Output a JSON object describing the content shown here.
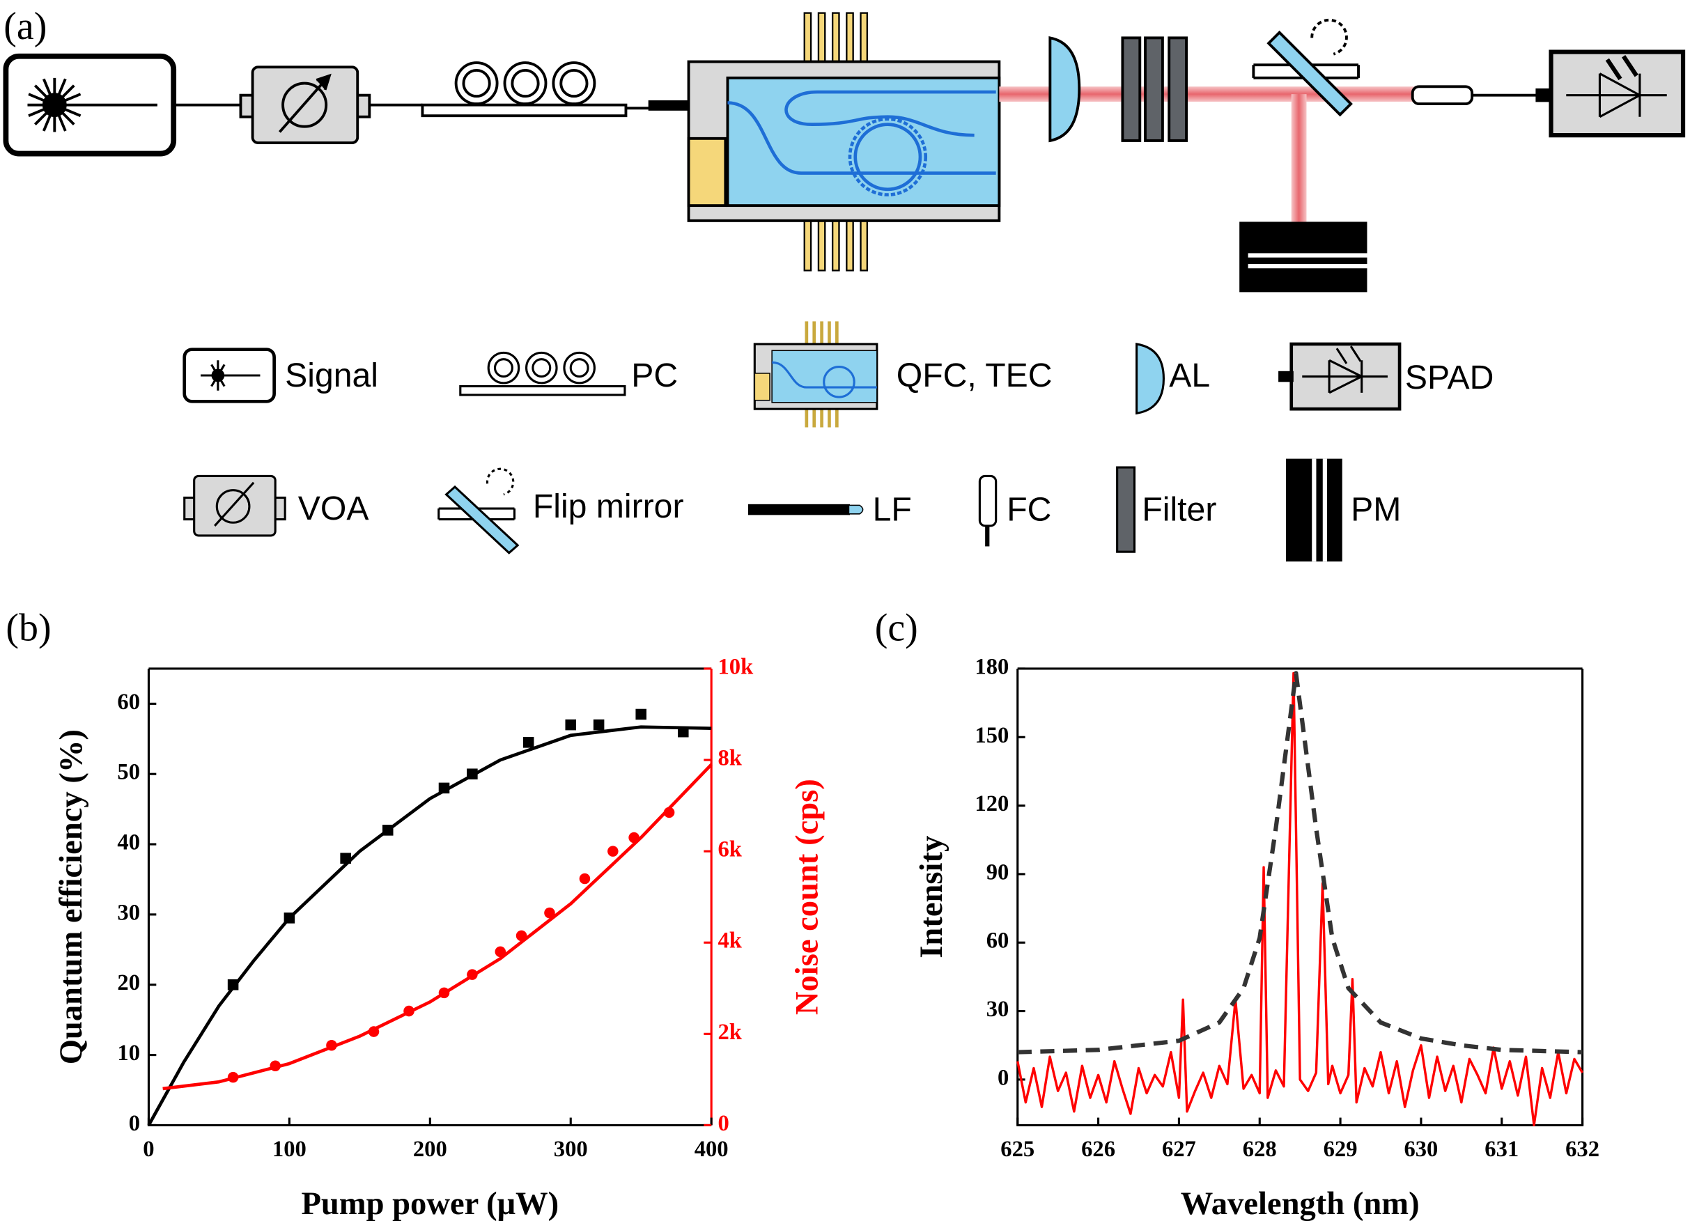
{
  "diagram": {
    "label": "(a)",
    "legend": [
      "Signal",
      "PC",
      "QFC, TEC",
      "AL",
      "SPAD",
      "VOA",
      "Flip mirror",
      "LF",
      "FC",
      "Filter",
      "PM"
    ]
  },
  "chart_data": [
    {
      "type": "scatter",
      "panel_label": "(b)",
      "xlabel": "Pump power (μW)",
      "ylabel": "Quantum efficiency (%)",
      "y2label": "Noise count (cps)",
      "xlim": [
        0,
        400
      ],
      "xticks": [
        0,
        100,
        200,
        300,
        400
      ],
      "ylim": [
        0,
        65
      ],
      "yticks": [
        0,
        10,
        20,
        30,
        40,
        50,
        60
      ],
      "y2lim": [
        0,
        10000
      ],
      "y2color": "#ff0000",
      "y2ticks": [
        0,
        {
          "value": 2000,
          "label": "2k"
        },
        {
          "value": 4000,
          "label": "4k"
        },
        {
          "value": 6000,
          "label": "6k"
        },
        {
          "value": 8000,
          "label": "8k"
        },
        {
          "value": 10000,
          "label": "10k"
        }
      ],
      "series": [
        {
          "color": "#000000",
          "mode": "markers",
          "marker": "square",
          "x": [
            60,
            100,
            140,
            170,
            210,
            230,
            270,
            300,
            320,
            350,
            380
          ],
          "values": [
            20,
            29.5,
            38,
            42,
            48,
            50,
            54.5,
            57,
            57,
            58.5,
            56
          ]
        },
        {
          "color": "#000000",
          "mode": "line",
          "x": [
            0,
            25,
            50,
            75,
            100,
            150,
            200,
            250,
            300,
            350,
            400
          ],
          "values": [
            0,
            9,
            17,
            23.5,
            29.5,
            39,
            46.5,
            52,
            55.5,
            56.7,
            56.5
          ]
        },
        {
          "color": "#ff0000",
          "mode": "markers",
          "marker": "circle",
          "axis": "y2",
          "x": [
            60,
            90,
            130,
            160,
            185,
            210,
            230,
            250,
            265,
            285,
            310,
            330,
            345,
            370
          ],
          "values": [
            1050,
            1300,
            1750,
            2050,
            2500,
            2900,
            3300,
            3800,
            4150,
            4650,
            5400,
            6000,
            6300,
            6850
          ]
        },
        {
          "color": "#ff0000",
          "mode": "line",
          "axis": "y2",
          "x": [
            10,
            50,
            100,
            150,
            200,
            250,
            300,
            350,
            400
          ],
          "values": [
            800,
            950,
            1350,
            1950,
            2700,
            3650,
            4850,
            6300,
            7900
          ]
        }
      ]
    },
    {
      "type": "line",
      "panel_label": "(c)",
      "xlabel": "Wavelength (nm)",
      "ylabel": "Intensity",
      "xlim": [
        625,
        632
      ],
      "xticks": [
        625,
        626,
        627,
        628,
        629,
        630,
        631,
        632
      ],
      "ylim": [
        -20,
        180
      ],
      "yticks": [
        0,
        30,
        60,
        90,
        120,
        150,
        180
      ],
      "series": [
        {
          "color": "#ff0000",
          "mode": "line",
          "x": [
            625.0,
            625.1,
            625.2,
            625.3,
            625.4,
            625.5,
            625.6,
            625.7,
            625.8,
            625.9,
            626.0,
            626.1,
            626.2,
            626.3,
            626.4,
            626.5,
            626.6,
            626.7,
            626.8,
            626.9,
            627.0,
            627.05,
            627.1,
            627.2,
            627.3,
            627.4,
            627.5,
            627.6,
            627.7,
            627.8,
            627.9,
            628.0,
            628.05,
            628.1,
            628.2,
            628.3,
            628.42,
            628.5,
            628.6,
            628.7,
            628.78,
            628.85,
            628.9,
            629.0,
            629.1,
            629.15,
            629.2,
            629.3,
            629.4,
            629.5,
            629.6,
            629.7,
            629.8,
            629.9,
            630.0,
            630.1,
            630.2,
            630.3,
            630.4,
            630.5,
            630.6,
            630.7,
            630.8,
            630.9,
            631.0,
            631.1,
            631.2,
            631.3,
            631.4,
            631.5,
            631.6,
            631.7,
            631.8,
            631.9,
            632.0
          ],
          "values": [
            8,
            -10,
            5,
            -12,
            10,
            -5,
            3,
            -14,
            6,
            -8,
            2,
            -10,
            8,
            -4,
            -15,
            5,
            -6,
            2,
            -3,
            12,
            -8,
            35,
            -14,
            -5,
            3,
            -8,
            6,
            -2,
            35,
            -4,
            2,
            -6,
            93,
            -8,
            4,
            -3,
            178,
            0,
            -5,
            3,
            86,
            -2,
            6,
            -6,
            2,
            44,
            -10,
            5,
            -3,
            12,
            -6,
            8,
            -12,
            4,
            15,
            -8,
            10,
            -5,
            6,
            -10,
            9,
            2,
            -6,
            14,
            -4,
            8,
            -7,
            10,
            -20,
            5,
            -8,
            12,
            -6,
            9,
            3
          ]
        },
        {
          "color": "#333333",
          "mode": "line",
          "dash": true,
          "x": [
            625,
            626,
            626.5,
            627,
            627.5,
            627.8,
            628,
            628.2,
            628.45,
            628.7,
            628.9,
            629.1,
            629.5,
            630,
            630.5,
            631,
            632
          ],
          "values": [
            12,
            13,
            15,
            17,
            25,
            40,
            62,
            110,
            178,
            110,
            62,
            40,
            25,
            18,
            15,
            13,
            12
          ]
        }
      ]
    }
  ]
}
